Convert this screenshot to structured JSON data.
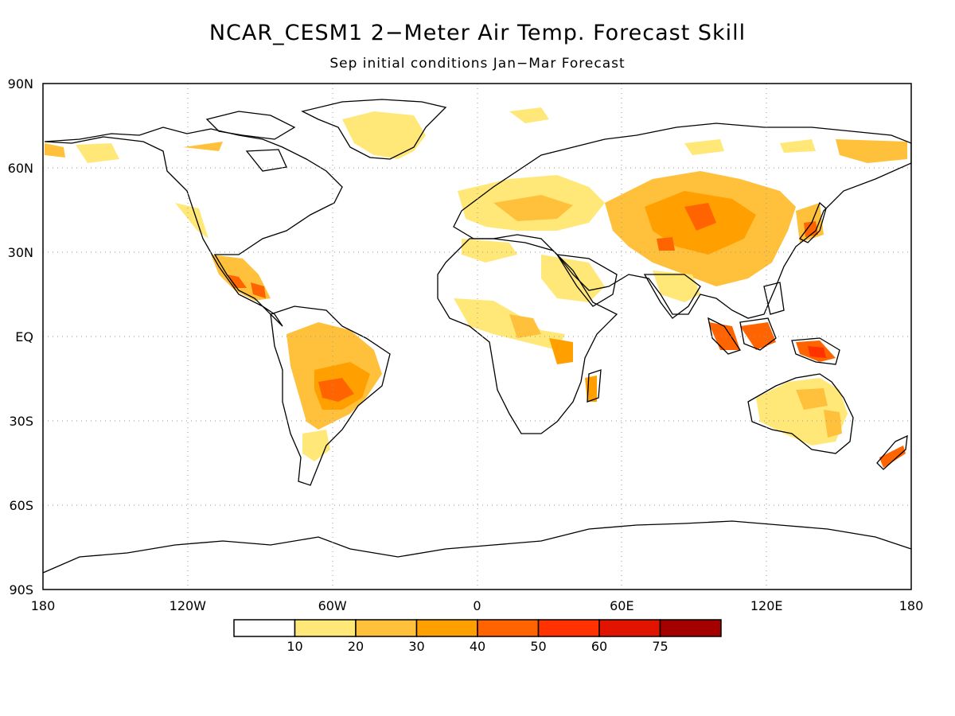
{
  "title": "NCAR_CESM1 2−Meter Air Temp. Forecast Skill",
  "subtitle": "Sep initial conditions   Jan−Mar Forecast",
  "axes": {
    "lat_labels": [
      {
        "lat": 90,
        "text": "90N"
      },
      {
        "lat": 60,
        "text": "60N"
      },
      {
        "lat": 30,
        "text": "30N"
      },
      {
        "lat": 0,
        "text": "EQ"
      },
      {
        "lat": -30,
        "text": "30S"
      },
      {
        "lat": -60,
        "text": "60S"
      },
      {
        "lat": -90,
        "text": "90S"
      }
    ],
    "lon_labels": [
      {
        "lon": -180,
        "text": "180"
      },
      {
        "lon": -120,
        "text": "120W"
      },
      {
        "lon": -60,
        "text": "60W"
      },
      {
        "lon": 0,
        "text": "0"
      },
      {
        "lon": 60,
        "text": "60E"
      },
      {
        "lon": 120,
        "text": "120E"
      },
      {
        "lon": 180,
        "text": "180"
      }
    ],
    "grid": true
  },
  "legend": {
    "colors": [
      "#ffffff",
      "#ffe878",
      "#ffc03c",
      "#ffa000",
      "#ff6400",
      "#ff3200",
      "#e11400",
      "#a50000"
    ],
    "labels": [
      "10",
      "20",
      "30",
      "40",
      "50",
      "60",
      "75"
    ]
  },
  "colors": {
    "ocean": "#ffffff",
    "coastline": "#000000",
    "grid": "#9a9a9a"
  }
}
